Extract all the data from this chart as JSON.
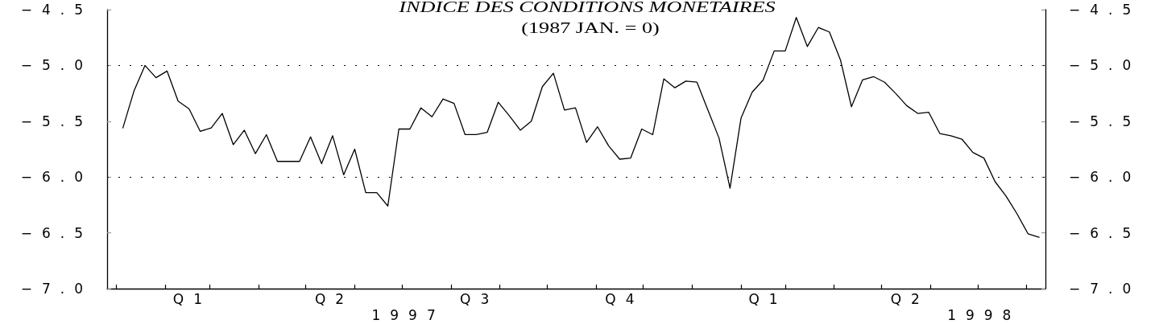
{
  "chart_data": {
    "type": "line",
    "title": "INDICE DES CONDITIONS MONETAIRES",
    "subtitle": "(1987 JAN. = 0)",
    "x": [
      "1997-01-05",
      "1997-01-12",
      "1997-01-19",
      "1997-01-26",
      "1997-02-02",
      "1997-02-09",
      "1997-02-16",
      "1997-02-23",
      "1997-03-02",
      "1997-03-09",
      "1997-03-16",
      "1997-03-23",
      "1997-03-30",
      "1997-04-06",
      "1997-04-13",
      "1997-04-20",
      "1997-04-27",
      "1997-05-04",
      "1997-05-11",
      "1997-05-18",
      "1997-05-25",
      "1997-06-01",
      "1997-06-08",
      "1997-06-15",
      "1997-06-22",
      "1997-06-29",
      "1997-07-06",
      "1997-07-13",
      "1997-07-20",
      "1997-07-27",
      "1997-08-03",
      "1997-08-10",
      "1997-08-17",
      "1997-08-24",
      "1997-08-31",
      "1997-09-07",
      "1997-09-14",
      "1997-09-21",
      "1997-09-28",
      "1997-10-05",
      "1997-10-12",
      "1997-10-19",
      "1997-10-26",
      "1997-11-02",
      "1997-11-09",
      "1997-11-16",
      "1997-11-23",
      "1997-11-30",
      "1997-12-07",
      "1997-12-14",
      "1997-12-21",
      "1997-12-28",
      "1998-01-04",
      "1998-01-11",
      "1998-01-18",
      "1998-01-25",
      "1998-02-01",
      "1998-02-08",
      "1998-02-15",
      "1998-02-22",
      "1998-03-01",
      "1998-03-08",
      "1998-03-15",
      "1998-03-22",
      "1998-03-29",
      "1998-04-05",
      "1998-04-12",
      "1998-04-19",
      "1998-04-26",
      "1998-05-03",
      "1998-05-10",
      "1998-05-17",
      "1998-05-24",
      "1998-05-31",
      "1998-06-07",
      "1998-06-14",
      "1998-06-21",
      "1998-06-28",
      "1998-07-05",
      "1998-07-12",
      "1998-07-19",
      "1998-07-26",
      "1998-08-02",
      "1998-08-09"
    ],
    "values": [
      -5.56,
      -5.23,
      -5.0,
      -5.11,
      -5.05,
      -5.32,
      -5.39,
      -5.59,
      -5.56,
      -5.43,
      -5.71,
      -5.58,
      -5.79,
      -5.62,
      -5.86,
      -5.86,
      -5.86,
      -5.64,
      -5.88,
      -5.63,
      -5.98,
      -5.75,
      -6.14,
      -6.14,
      -6.26,
      -5.57,
      -5.57,
      -5.38,
      -5.46,
      -5.3,
      -5.34,
      -5.62,
      -5.62,
      -5.6,
      -5.33,
      -5.45,
      -5.58,
      -5.5,
      -5.19,
      -5.07,
      -5.4,
      -5.38,
      -5.69,
      -5.55,
      -5.72,
      -5.84,
      -5.83,
      -5.57,
      -5.62,
      -5.12,
      -5.2,
      -5.14,
      -5.15,
      -5.4,
      -5.65,
      -6.1,
      -5.47,
      -5.24,
      -5.13,
      -4.87,
      -4.87,
      -4.57,
      -4.83,
      -4.66,
      -4.7,
      -4.95,
      -5.37,
      -5.13,
      -5.1,
      -5.15,
      -5.25,
      -5.36,
      -5.43,
      -5.42,
      -5.61,
      -5.63,
      -5.66,
      -5.78,
      -5.83,
      -6.04,
      -6.17,
      -6.33,
      -6.51,
      -6.54
    ],
    "color": "#000000",
    "marker": "none",
    "line_style": "solid",
    "xlim": [
      "1996-12-26",
      "1998-08-13"
    ],
    "xticks": [
      {
        "value": "1997-01-01",
        "label": null
      },
      {
        "value": "1997-02-01",
        "label": null
      },
      {
        "value": "1997-03-01",
        "label": null
      },
      {
        "value": "1997-04-01",
        "label": null
      },
      {
        "value": "1997-05-01",
        "label": null
      },
      {
        "value": "1997-06-01",
        "label": null
      },
      {
        "value": "1997-07-01",
        "label": null
      },
      {
        "value": "1997-08-01",
        "label": null
      },
      {
        "value": "1997-09-01",
        "label": null
      },
      {
        "value": "1997-10-01",
        "label": null
      },
      {
        "value": "1997-11-01",
        "label": null
      },
      {
        "value": "1997-12-01",
        "label": null
      },
      {
        "value": "1998-01-01",
        "label": null
      },
      {
        "value": "1998-02-01",
        "label": null
      },
      {
        "value": "1998-03-01",
        "label": null
      },
      {
        "value": "1998-04-01",
        "label": null
      },
      {
        "value": "1998-05-01",
        "label": null
      },
      {
        "value": "1998-06-01",
        "label": null
      },
      {
        "value": "1998-07-01",
        "label": null
      },
      {
        "value": "1998-08-01",
        "label": null
      },
      {
        "value": "1997-02-15",
        "label": "Q1"
      },
      {
        "value": "1997-05-16",
        "label": "Q2"
      },
      {
        "value": "1997-08-16",
        "label": "Q3"
      },
      {
        "value": "1997-11-16",
        "label": "Q4"
      },
      {
        "value": "1998-02-15",
        "label": "Q1"
      },
      {
        "value": "1998-05-16",
        "label": "Q2"
      }
    ],
    "x2lim": [
      "1996-12-26",
      "1998-08-13"
    ],
    "x2ticks": [
      {
        "value": "1997-07-02",
        "label": "1997"
      },
      {
        "value": "1998-07-02",
        "label": "1998"
      }
    ],
    "ylim": [
      -7,
      -4.5
    ],
    "yticks": [
      {
        "value": -7,
        "label": "−7.0"
      },
      {
        "value": -6.5,
        "label": "−6.5"
      },
      {
        "value": -6,
        "label": "−6.0"
      },
      {
        "value": -5.5,
        "label": "−5.5"
      },
      {
        "value": -5,
        "label": "−5.0"
      },
      {
        "value": -4.5,
        "label": "−4.5"
      }
    ],
    "y2lim": [
      -7,
      -4.5
    ],
    "y2ticks": [
      {
        "value": -7,
        "label": "−7.0"
      },
      {
        "value": -6.5,
        "label": "−6.5"
      },
      {
        "value": -6,
        "label": "−6.0"
      },
      {
        "value": -5.5,
        "label": "−5.5"
      },
      {
        "value": -5,
        "label": "−5.0"
      },
      {
        "value": -4.5,
        "label": "−4.5"
      }
    ],
    "ref_lines": [
      {
        "axis": "y",
        "value": -5,
        "color": "#000000",
        "line_style": "dotted"
      },
      {
        "axis": "y",
        "value": -6,
        "color": "#000000",
        "line_style": "dotted"
      }
    ]
  }
}
